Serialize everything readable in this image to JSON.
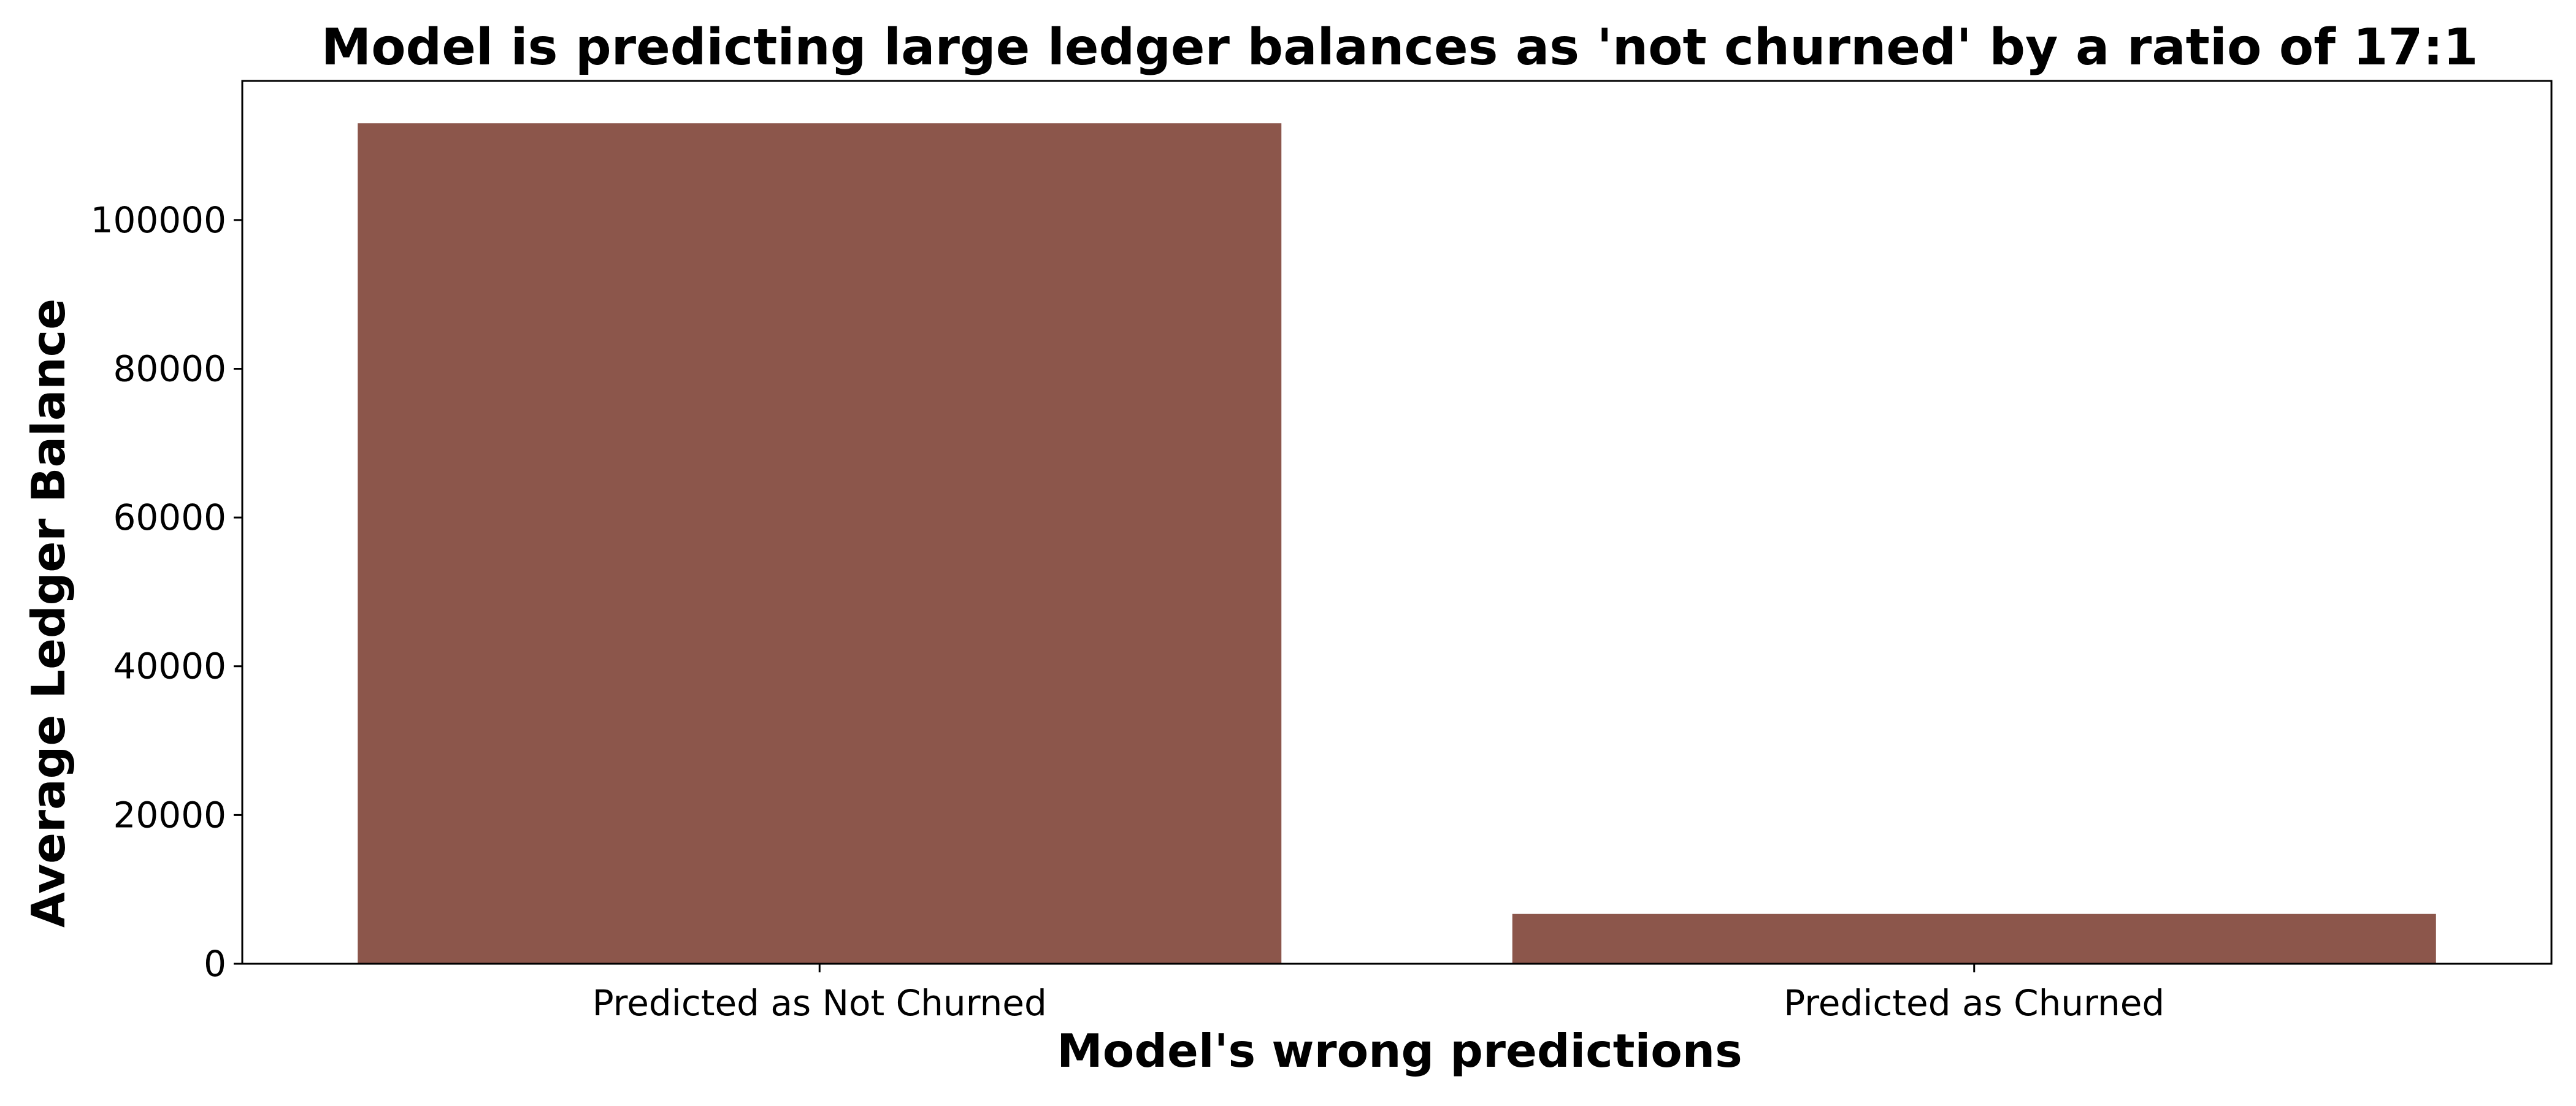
{
  "chart_data": {
    "type": "bar",
    "title": "Model is predicting large ledger balances as 'not churned' by a ratio of 17:1",
    "xlabel": "Model's wrong predictions",
    "ylabel": "Average Ledger Balance",
    "categories": [
      "Predicted as Not Churned",
      "Predicted as Churned"
    ],
    "values": [
      113000,
      6700
    ],
    "ylim": [
      0,
      118700
    ],
    "yticks": [
      0,
      20000,
      40000,
      60000,
      80000,
      100000
    ],
    "ytick_labels": [
      "0",
      "20000",
      "40000",
      "60000",
      "80000",
      "100000"
    ],
    "bar_color": "#8c564b",
    "grid": false,
    "legend": "none"
  }
}
